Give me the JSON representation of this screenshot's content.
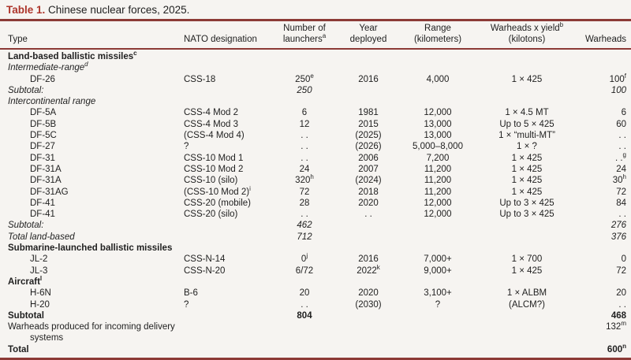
{
  "caption": {
    "label": "Table 1.",
    "text": " Chinese nuclear forces, 2025."
  },
  "colors": {
    "bg": "#f6f4f1",
    "text": "#1f1f1f",
    "accent": "#ad352b",
    "rule": "#8c3a36"
  },
  "table": {
    "columns": [
      {
        "id": "type",
        "line1": "",
        "line2": "Type"
      },
      {
        "id": "nato-designation",
        "line1": "",
        "line2": "NATO designation"
      },
      {
        "id": "launchers",
        "line1": "Number of",
        "line2": "launchers^a"
      },
      {
        "id": "year-deployed",
        "line1": "Year",
        "line2": "deployed"
      },
      {
        "id": "range",
        "line1": "Range",
        "line2": "(kilometers)"
      },
      {
        "id": "warheads-yield",
        "line1": "Warheads x yield^b",
        "line2": "(kilotons)"
      },
      {
        "id": "warheads",
        "line1": "",
        "line2": "Warheads"
      }
    ],
    "rows": [
      {
        "style": "section",
        "cells": [
          "Land-based ballistic missiles^c",
          "",
          "",
          "",
          "",
          "",
          ""
        ]
      },
      {
        "style": "subhead",
        "cells": [
          "Intermediate-range^d",
          "",
          "",
          "",
          "",
          "",
          ""
        ]
      },
      {
        "style": "item",
        "cells": [
          "DF-26",
          "CSS-18",
          "250^e",
          "2016",
          "4,000",
          "1 × 425",
          "100^f"
        ]
      },
      {
        "style": "subtotal",
        "cells": [
          "Subtotal:",
          "",
          "250",
          "",
          "",
          "",
          "100"
        ]
      },
      {
        "style": "subhead",
        "cells": [
          "Intercontinental range",
          "",
          "",
          "",
          "",
          "",
          ""
        ]
      },
      {
        "style": "item",
        "cells": [
          "DF-5A",
          "CSS-4 Mod 2",
          "6",
          "1981",
          "12,000",
          "1 × 4.5 MT",
          "6"
        ]
      },
      {
        "style": "item",
        "cells": [
          "DF-5B",
          "CSS-4 Mod 3",
          "12",
          "2015",
          "13,000",
          "Up to 5 × 425",
          "60"
        ]
      },
      {
        "style": "item",
        "cells": [
          "DF-5C",
          "(CSS-4 Mod 4)",
          ". .",
          "(2025)",
          "13,000",
          "1 × “multi-MT”",
          ". ."
        ]
      },
      {
        "style": "item",
        "cells": [
          "DF-27",
          "?",
          ". .",
          "(2026)",
          "5,000–8,000",
          "1 × ?",
          ". ."
        ]
      },
      {
        "style": "item",
        "cells": [
          "DF-31",
          "CSS-10 Mod 1",
          ". .",
          "2006",
          "7,200",
          "1 × 425",
          ". .^g"
        ]
      },
      {
        "style": "item",
        "cells": [
          "DF-31A",
          "CSS-10 Mod 2",
          "24",
          "2007",
          "11,200",
          "1 × 425",
          "24"
        ]
      },
      {
        "style": "item",
        "cells": [
          "DF-31A",
          "CSS-10 (silo)",
          "320^h",
          "(2024)",
          "11,200",
          "1 × 425",
          "30^h"
        ]
      },
      {
        "style": "item",
        "cells": [
          "DF-31AG",
          "(CSS-10 Mod 2)^i",
          "72",
          "2018",
          "11,200",
          "1 × 425",
          "72"
        ]
      },
      {
        "style": "item",
        "cells": [
          "DF-41",
          "CSS-20 (mobile)",
          "28",
          "2020",
          "12,000",
          "Up to 3 × 425",
          "84"
        ]
      },
      {
        "style": "item",
        "cells": [
          "DF-41",
          "CSS-20 (silo)",
          ". .",
          ". .",
          "12,000",
          "Up to 3 × 425",
          ". ."
        ]
      },
      {
        "style": "subtotal",
        "cells": [
          "Subtotal:",
          "",
          "462",
          "",
          "",
          "",
          "276"
        ]
      },
      {
        "style": "subtotal",
        "cells": [
          "Total land-based",
          "",
          "712",
          "",
          "",
          "",
          "376"
        ]
      },
      {
        "style": "section",
        "cells": [
          "Submarine-launched ballistic missiles",
          "",
          "",
          "",
          "",
          "",
          ""
        ]
      },
      {
        "style": "item",
        "cells": [
          "JL-2",
          "CSS-N-14",
          "0^j",
          "2016",
          "7,000+",
          "1 × 700",
          "0"
        ]
      },
      {
        "style": "item",
        "cells": [
          "JL-3",
          "CSS-N-20",
          "6/72",
          "2022^k",
          "9,000+",
          "1 × 425",
          "72"
        ]
      },
      {
        "style": "section",
        "cells": [
          "Aircraft^l",
          "",
          "",
          "",
          "",
          "",
          ""
        ]
      },
      {
        "style": "item",
        "cells": [
          "H-6N",
          "B-6",
          "20",
          "2020",
          "3,100+",
          "1 × ALBM",
          "20"
        ]
      },
      {
        "style": "item",
        "cells": [
          "H-20",
          "?",
          ". .",
          "(2030)",
          "?",
          "(ALCM?)",
          ". ."
        ]
      },
      {
        "style": "bold",
        "cells": [
          "Subtotal",
          "",
          "804",
          "",
          "",
          "",
          "468"
        ]
      },
      {
        "style": "plain2",
        "cells": [
          "Warheads produced for incoming delivery systems",
          "",
          "",
          "",
          "",
          "",
          "132^m"
        ]
      },
      {
        "style": "bold",
        "cells": [
          "Total",
          "",
          "",
          "",
          "",
          "",
          "600^n"
        ]
      }
    ]
  }
}
